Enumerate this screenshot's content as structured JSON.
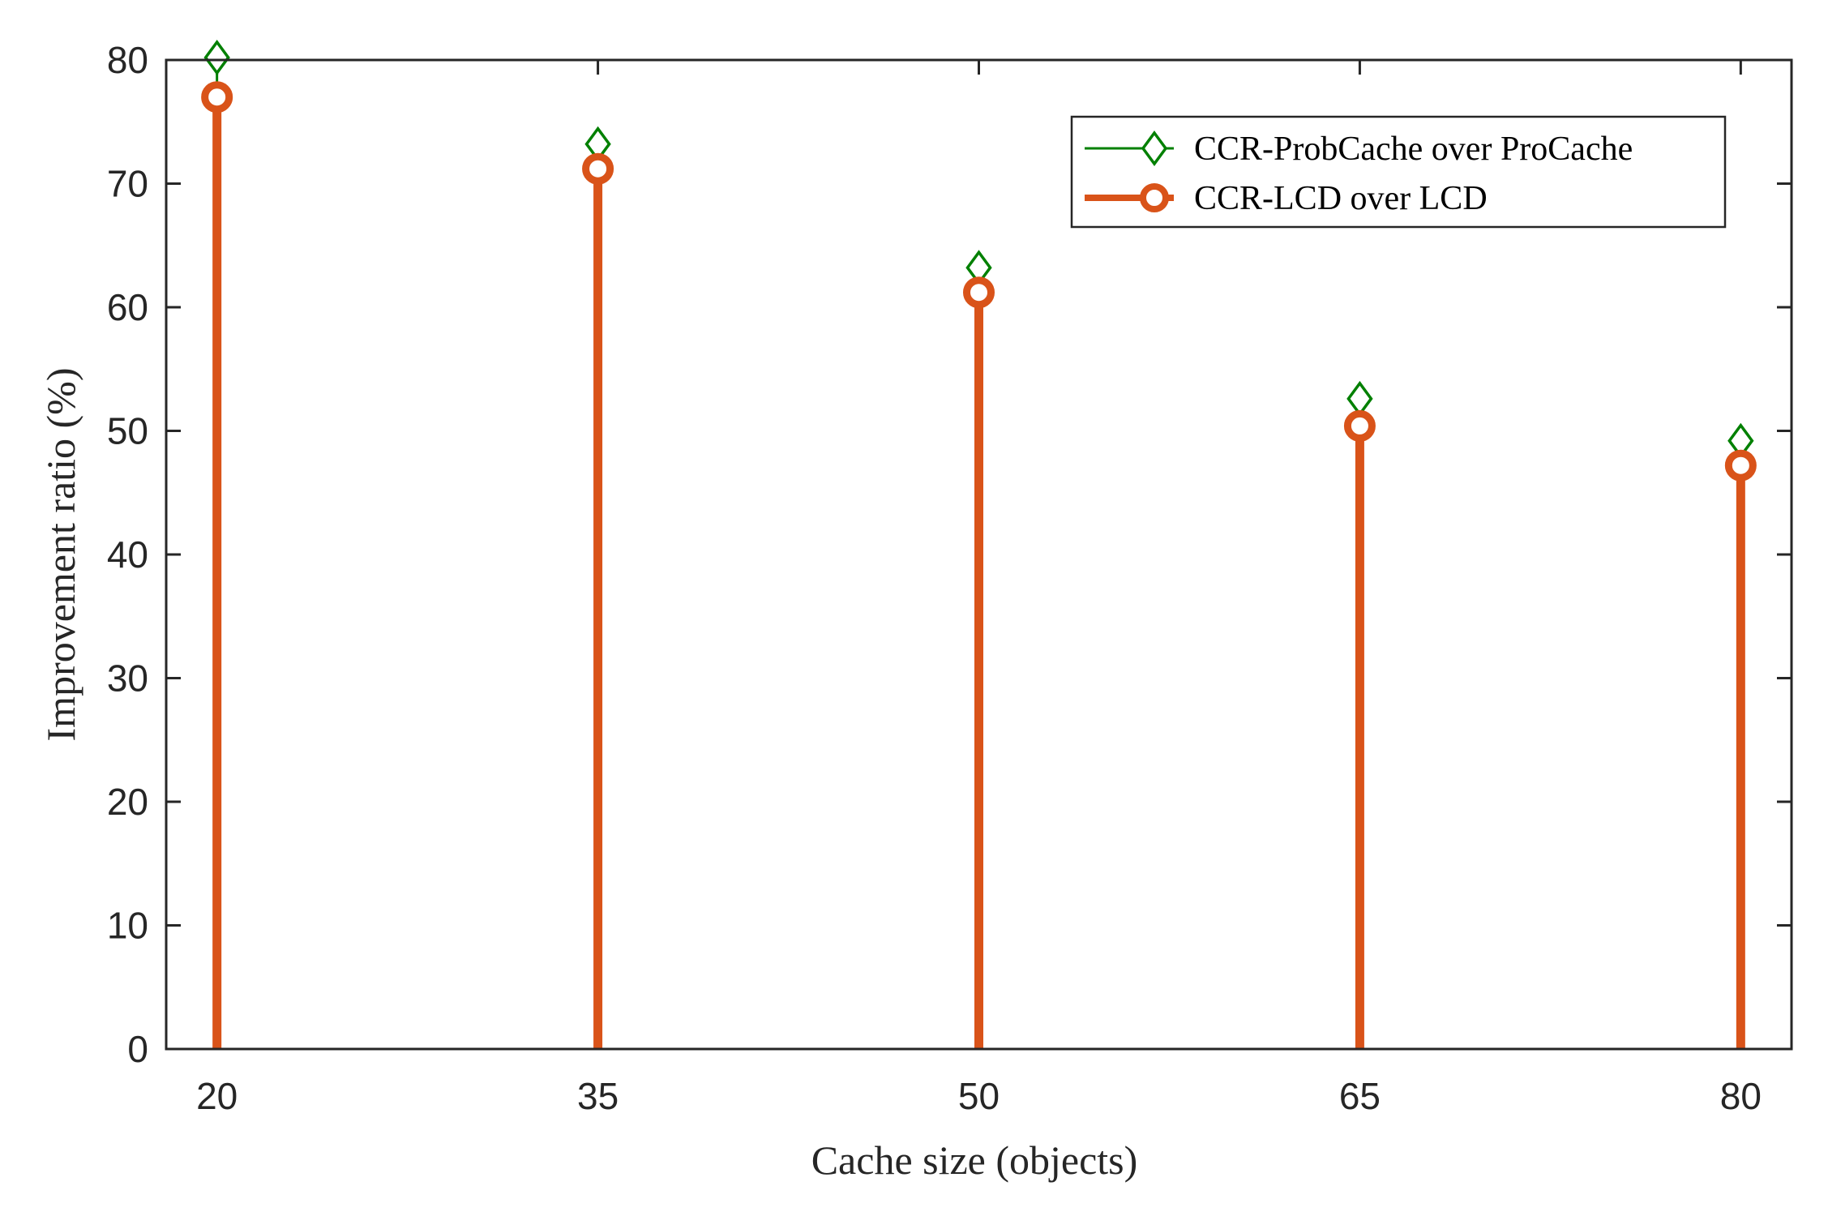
{
  "chart_data": {
    "type": "stem",
    "x": [
      20,
      35,
      50,
      65,
      80
    ],
    "xlabel": "Cache size (objects)",
    "ylabel": "Improvement ratio (%)",
    "xlim": [
      18,
      82
    ],
    "ylim": [
      0,
      80
    ],
    "xticks": [
      "20",
      "35",
      "50",
      "65",
      "80"
    ],
    "yticks": [
      "0",
      "10",
      "20",
      "30",
      "40",
      "50",
      "60",
      "70",
      "80"
    ],
    "grid": false,
    "legend_position": "top-right",
    "series": [
      {
        "name": "CCR-ProbCache over ProCache",
        "values": [
          80.2,
          73.2,
          63.2,
          52.6,
          49.2
        ],
        "color": "#008000",
        "marker": "diamond"
      },
      {
        "name": "CCR-LCD over LCD",
        "values": [
          77.0,
          71.2,
          61.2,
          50.4,
          47.2
        ],
        "color": "#D95319",
        "marker": "circle"
      }
    ]
  }
}
